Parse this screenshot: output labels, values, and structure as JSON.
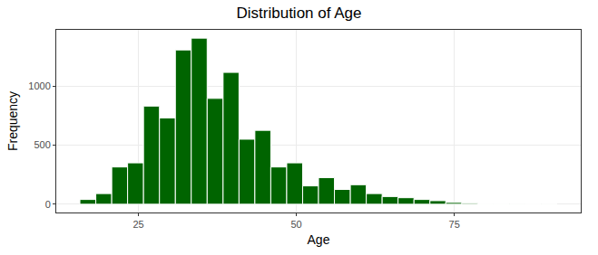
{
  "chart_data": {
    "type": "histogram",
    "title": "Distribution of Age",
    "x_label": "Age",
    "y_label": "Frequency",
    "bins": [
      15.74,
      18.26,
      20.78,
      23.29,
      25.81,
      28.33,
      30.85,
      33.36,
      35.88,
      38.4,
      40.92,
      43.43,
      45.95,
      48.47,
      50.99,
      53.5,
      56.02,
      58.54,
      61.06,
      63.57,
      66.09,
      68.61,
      71.13,
      73.64,
      76.16,
      78.68,
      81.2,
      83.71,
      86.23,
      88.75,
      91.27
    ],
    "values": [
      40,
      90,
      315,
      350,
      830,
      730,
      1305,
      1405,
      895,
      1115,
      550,
      625,
      315,
      350,
      155,
      225,
      125,
      165,
      90,
      65,
      55,
      40,
      30,
      15,
      8,
      3,
      2,
      1,
      0,
      1
    ],
    "color": "#006400",
    "xlim": [
      12,
      95
    ],
    "xticks": [
      25,
      50,
      75
    ],
    "ylim": [
      -70,
      1475
    ],
    "yticks": [
      0,
      500,
      1000
    ],
    "grid": true
  }
}
